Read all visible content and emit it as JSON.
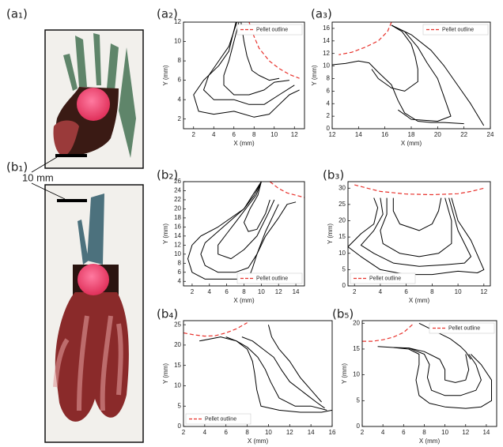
{
  "photos": [
    {
      "panel_label": "(a₁)"
    },
    {
      "panel_label": "(b₁)"
    }
  ],
  "scale_bar_label": "10 mm",
  "chart_data": [
    {
      "type": "line",
      "panel_label": "(a₂)",
      "xlabel": "X (mm)",
      "ylabel": "Y (mm)",
      "legend": "upper right",
      "xlim": [
        1,
        13
      ],
      "xticks": [
        2,
        4,
        6,
        8,
        10,
        12
      ],
      "ylim": [
        1,
        12
      ],
      "yticks": [
        2,
        4,
        6,
        8,
        10,
        12
      ],
      "series": [
        {
          "name": "Pellet outline",
          "color": "#e8322c",
          "linestyle": "dashed",
          "x": [
            7.5,
            8,
            8.5,
            9.5,
            10.5,
            11.5,
            12.5
          ],
          "y": [
            12,
            10.5,
            9.3,
            8,
            7.2,
            6.6,
            6.2
          ]
        },
        {
          "color": "#000000",
          "x": [
            6.2,
            5.5,
            4.5,
            3,
            2,
            2.5,
            4,
            6,
            8,
            9.5,
            10.5,
            11.5,
            12.5
          ],
          "y": [
            12,
            9,
            7.5,
            6,
            4.5,
            2.8,
            2.5,
            2.8,
            2.2,
            2.5,
            3.5,
            4.5,
            5
          ]
        },
        {
          "color": "#000000",
          "x": [
            6.3,
            5.5,
            4.5,
            3.5,
            3,
            4,
            6,
            7.5,
            9,
            10.5,
            12
          ],
          "y": [
            12,
            9.5,
            8,
            6.5,
            5,
            4,
            4,
            3.5,
            3.5,
            4.5,
            5.5
          ]
        },
        {
          "color": "#000000",
          "x": [
            6.5,
            6,
            5.5,
            5,
            5,
            6,
            7.5,
            9,
            10,
            11.5
          ],
          "y": [
            12,
            10,
            8,
            6.5,
            5.5,
            4.5,
            4.5,
            5,
            5.8,
            6
          ]
        },
        {
          "color": "#000000",
          "x": [
            6.7,
            7,
            7.3,
            7.8,
            8.5,
            9.5,
            10.5
          ],
          "y": [
            12,
            10,
            8.5,
            7,
            6.5,
            6,
            6.2
          ]
        }
      ]
    },
    {
      "type": "line",
      "panel_label": "(a₃)",
      "xlabel": "X (mm)",
      "ylabel": "Y (mm)",
      "legend": "upper right",
      "xlim": [
        12,
        24
      ],
      "xticks": [
        12,
        14,
        16,
        18,
        20,
        22,
        24
      ],
      "ylim": [
        0,
        17
      ],
      "yticks": [
        0,
        2,
        4,
        6,
        8,
        10,
        12,
        14,
        16
      ],
      "series": [
        {
          "name": "Pellet outline",
          "color": "#e8322c",
          "linestyle": "dashed",
          "x": [
            16.5,
            16.2,
            15.5,
            14.5,
            13.5,
            12.5
          ],
          "y": [
            17,
            15.5,
            14,
            13,
            12.2,
            11.8
          ]
        },
        {
          "color": "#000000",
          "x": [
            16.5,
            18,
            19.5,
            20.5,
            21.5,
            22.5,
            23.5
          ],
          "y": [
            16.5,
            15,
            12.5,
            10,
            7,
            4,
            0.5
          ]
        },
        {
          "color": "#000000",
          "x": [
            16.5,
            17.5,
            18.5,
            19.2,
            20,
            20.5,
            21,
            20,
            18,
            17
          ],
          "y": [
            16.5,
            15.5,
            13,
            10.5,
            8,
            5,
            2,
            1.2,
            1.5,
            3
          ]
        },
        {
          "color": "#000000",
          "x": [
            16.5,
            17.3,
            18,
            18.3,
            18.5,
            18.5,
            17.5,
            16.5,
            15.5,
            15
          ],
          "y": [
            16.5,
            15.5,
            13.5,
            11.5,
            9.5,
            7.5,
            6,
            6.5,
            8,
            9.5
          ]
        },
        {
          "color": "#000000",
          "x": [
            12,
            13,
            14,
            14.8,
            15.5,
            16.5,
            17,
            17.5,
            18.5,
            19.5,
            20.5,
            22
          ],
          "y": [
            10.2,
            10.4,
            10.8,
            10.5,
            9,
            7,
            4.5,
            2.5,
            1.2,
            1,
            1,
            0.8
          ]
        }
      ]
    },
    {
      "type": "line",
      "panel_label": "(b₂)",
      "xlabel": "X (mm)",
      "ylabel": "Y (mm)",
      "legend": "lower right",
      "xlim": [
        1,
        15
      ],
      "xticks": [
        2,
        4,
        6,
        8,
        10,
        12,
        14
      ],
      "ylim": [
        3,
        26
      ],
      "yticks": [
        4,
        6,
        8,
        10,
        12,
        14,
        16,
        18,
        20,
        22,
        24,
        26
      ],
      "series": [
        {
          "name": "Pellet outline",
          "color": "#e8322c",
          "linestyle": "dashed",
          "x": [
            11,
            12,
            13,
            14,
            15
          ],
          "y": [
            26,
            24.5,
            23.5,
            23,
            22.5
          ]
        },
        {
          "color": "#000000",
          "x": [
            10,
            9,
            8,
            6.5,
            5,
            3,
            2,
            1.5,
            2,
            3.5,
            6,
            8.5,
            9,
            9.5,
            10.5,
            12,
            13,
            14
          ],
          "y": [
            26,
            23,
            20,
            18,
            16,
            14,
            12,
            9,
            6,
            4.5,
            4.5,
            4.5,
            7,
            10,
            14,
            18,
            21,
            21.5
          ]
        },
        {
          "color": "#000000",
          "x": [
            10,
            9.2,
            8,
            6.5,
            5,
            3.5,
            3,
            3.5,
            5,
            7,
            8.5,
            9.5,
            10.5,
            12
          ],
          "y": [
            26,
            23,
            20,
            17.5,
            15,
            12.5,
            10,
            7.5,
            6,
            6,
            7,
            10,
            15,
            21
          ]
        },
        {
          "color": "#000000",
          "x": [
            10,
            9.4,
            8.2,
            7,
            6,
            5,
            5,
            6.5,
            8,
            9.5,
            10.8,
            11.5
          ],
          "y": [
            26,
            23,
            20,
            17,
            14.5,
            12,
            10,
            9,
            11,
            14,
            19,
            22
          ]
        },
        {
          "color": "#000000",
          "x": [
            10,
            9.6,
            8.7,
            8,
            8.5,
            9.5,
            10.5,
            11
          ],
          "y": [
            26,
            23,
            20,
            17,
            15,
            15.5,
            19,
            22
          ]
        }
      ]
    },
    {
      "type": "line",
      "panel_label": "(b₃)",
      "xlabel": "X (mm)",
      "ylabel": "Y (mm)",
      "legend": "lower left",
      "xlim": [
        1.5,
        12.5
      ],
      "xticks": [
        2,
        4,
        6,
        8,
        10,
        12
      ],
      "ylim": [
        0,
        32
      ],
      "yticks": [
        0,
        5,
        10,
        15,
        20,
        25,
        30
      ],
      "series": [
        {
          "name": "Pellet outline",
          "color": "#e8322c",
          "linestyle": "dashed",
          "x": [
            2,
            3,
            4,
            6,
            8,
            10,
            11,
            12
          ],
          "y": [
            31,
            30,
            29,
            28.2,
            28,
            28.3,
            29,
            30
          ]
        },
        {
          "color": "#000000",
          "x": [
            3.5,
            3.8,
            3.5,
            2.5,
            1.5,
            2.5,
            4,
            6,
            8,
            10,
            11.5,
            12,
            11,
            10,
            9.5
          ],
          "y": [
            27,
            24,
            19,
            16,
            12,
            9,
            5,
            3.5,
            3.5,
            4.5,
            4,
            5,
            14,
            20,
            27
          ]
        },
        {
          "color": "#000000",
          "x": [
            4,
            4.2,
            3.5,
            2.5,
            3.5,
            5,
            7,
            9,
            10.5,
            11,
            10,
            9.3
          ],
          "y": [
            27,
            22,
            17,
            12.5,
            10,
            7,
            6,
            6.5,
            7,
            9,
            17,
            27
          ]
        },
        {
          "color": "#000000",
          "x": [
            4.5,
            4.5,
            4,
            4.2,
            5.5,
            7,
            8.5,
            9.5,
            9.5,
            9
          ],
          "y": [
            27,
            22,
            17,
            13,
            10,
            9,
            10,
            13,
            20,
            27
          ]
        },
        {
          "color": "#000000",
          "x": [
            5,
            5,
            5.5,
            7,
            8,
            8.5,
            8.7
          ],
          "y": [
            27,
            23,
            19,
            17,
            19,
            23,
            27
          ]
        }
      ]
    },
    {
      "type": "line",
      "panel_label": "(b₄)",
      "xlabel": "X (mm)",
      "ylabel": "Y (mm)",
      "legend": "lower left",
      "xlim": [
        2,
        16
      ],
      "xticks": [
        2,
        4,
        6,
        8,
        10,
        12,
        14,
        16
      ],
      "ylim": [
        0,
        26
      ],
      "yticks": [
        0,
        5,
        10,
        15,
        20,
        25
      ],
      "series": [
        {
          "name": "Pellet outline",
          "color": "#e8322c",
          "linestyle": "dashed",
          "x": [
            2,
            3,
            4,
            5,
            6,
            7,
            8
          ],
          "y": [
            23,
            22.5,
            22.2,
            22.3,
            23,
            24,
            25.5
          ]
        },
        {
          "color": "#000000",
          "x": [
            3.5,
            5.5,
            7,
            8,
            8.5,
            8.7,
            8.9,
            9.3,
            11,
            13,
            15,
            16
          ],
          "y": [
            21,
            22,
            21,
            19,
            16,
            13,
            9,
            5,
            4,
            3.5,
            3.5,
            4
          ]
        },
        {
          "color": "#000000",
          "x": [
            6,
            7,
            8,
            9,
            9.7,
            10.2,
            11,
            12.5,
            14,
            15.5
          ],
          "y": [
            22,
            21,
            19.5,
            17,
            14,
            11,
            7,
            5,
            5,
            4
          ]
        },
        {
          "color": "#000000",
          "x": [
            7.5,
            8.5,
            9.5,
            10.5,
            11.2,
            12,
            13.5,
            14.5,
            15.3
          ],
          "y": [
            22,
            21,
            19,
            17,
            14,
            11,
            8,
            6,
            4.5
          ]
        },
        {
          "color": "#000000",
          "x": [
            10,
            10.3,
            11,
            12,
            13,
            14,
            15
          ],
          "y": [
            25,
            22,
            19,
            16,
            12,
            9,
            6
          ]
        }
      ]
    },
    {
      "type": "line",
      "panel_label": "(b₅)",
      "xlabel": "X (mm)",
      "ylabel": "Y (mm)",
      "legend": "upper right",
      "xlim": [
        2,
        15
      ],
      "xticks": [
        2,
        4,
        6,
        8,
        10,
        12,
        14
      ],
      "ylim": [
        0,
        20.5
      ],
      "yticks": [
        0,
        5,
        10,
        15,
        20
      ],
      "series": [
        {
          "name": "Pellet outline",
          "color": "#e8322c",
          "linestyle": "dashed",
          "x": [
            2,
            3,
            4,
            5,
            6,
            7
          ],
          "y": [
            16.5,
            16.5,
            16.8,
            17.3,
            18.2,
            20
          ]
        },
        {
          "color": "#000000",
          "x": [
            3.5,
            5,
            6.5,
            7.5,
            7.5,
            7.2,
            7.5,
            8.5,
            10,
            12,
            13.5,
            14.5,
            14.5,
            13.5,
            12.5
          ],
          "y": [
            15.5,
            15.3,
            15,
            14,
            12,
            9,
            6,
            4.5,
            3.8,
            3.5,
            3.8,
            5,
            9,
            12,
            14
          ]
        },
        {
          "color": "#000000",
          "x": [
            5,
            6.5,
            8,
            8.5,
            8.3,
            8.7,
            10,
            11.5,
            13,
            13.5,
            13,
            12.3
          ],
          "y": [
            15.3,
            15.2,
            14,
            12,
            9.5,
            7,
            6,
            6,
            7,
            9,
            12,
            14
          ]
        },
        {
          "color": "#000000",
          "x": [
            6.5,
            8,
            9.5,
            10,
            10,
            11,
            12,
            12.3,
            12
          ],
          "y": [
            15.2,
            14.5,
            13,
            11,
            9,
            8.5,
            9,
            11,
            14
          ]
        },
        {
          "color": "#000000",
          "x": [
            7.5,
            9,
            10.5,
            11.5,
            12,
            12.5
          ],
          "y": [
            20,
            18.5,
            17,
            15.5,
            14.5,
            13
          ]
        }
      ]
    }
  ]
}
